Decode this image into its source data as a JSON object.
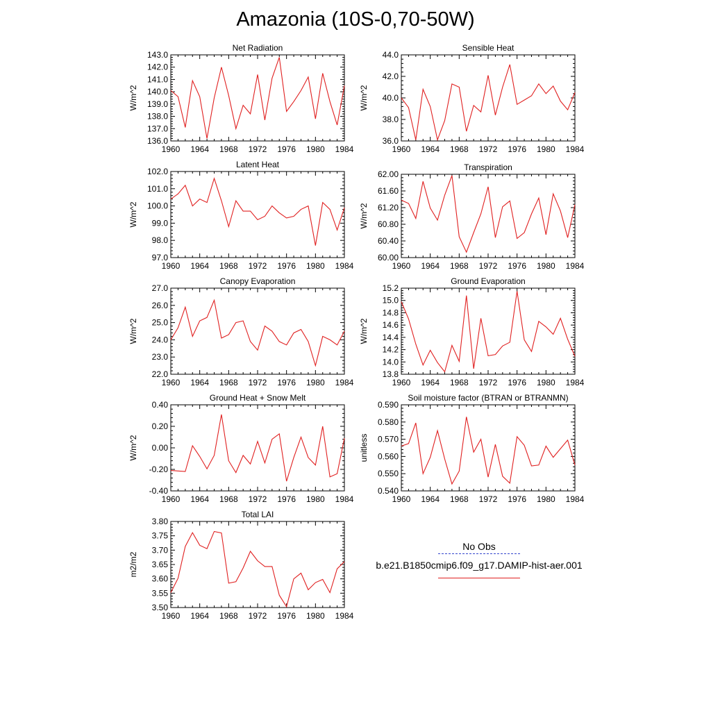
{
  "title": "Amazonia (10S-0,70-50W)",
  "legend": {
    "obs_label": "No Obs",
    "obs_color": "#3344cc",
    "model_label": "b.e21.B1850cmip6.f09_g17.DAMIP-hist-aer.001",
    "model_color": "#e02020"
  },
  "chart_data": [
    {
      "type": "line",
      "title": "Net Radiation",
      "ylabel": "W/m^2",
      "xlim": [
        1960,
        1984
      ],
      "ylim": [
        136.0,
        143.0
      ],
      "yticks": [
        "136.0",
        "137.0",
        "138.0",
        "139.0",
        "140.0",
        "141.0",
        "142.0",
        "143.0"
      ],
      "xticks": [
        "1960",
        "1964",
        "1968",
        "1972",
        "1976",
        "1980",
        "1984"
      ],
      "x": [
        1960,
        1961,
        1962,
        1963,
        1964,
        1965,
        1966,
        1967,
        1968,
        1969,
        1970,
        1971,
        1972,
        1973,
        1974,
        1975,
        1976,
        1977,
        1978,
        1979,
        1980,
        1981,
        1982,
        1983,
        1984
      ],
      "series": [
        {
          "values": [
            140.1,
            139.6,
            137.1,
            140.9,
            139.6,
            136.2,
            139.5,
            142.0,
            139.7,
            137.0,
            138.9,
            138.2,
            141.4,
            137.7,
            141.1,
            142.8,
            138.4,
            139.2,
            140.1,
            141.2,
            137.8,
            141.5,
            139.2,
            137.3,
            140.5
          ]
        }
      ]
    },
    {
      "type": "line",
      "title": "Sensible Heat",
      "ylabel": "W/m^2",
      "xlim": [
        1960,
        1984
      ],
      "ylim": [
        36.0,
        44.0
      ],
      "yticks": [
        "36.0",
        "38.0",
        "40.0",
        "42.0",
        "44.0"
      ],
      "xticks": [
        "1960",
        "1964",
        "1968",
        "1972",
        "1976",
        "1980",
        "1984"
      ],
      "x": [
        1960,
        1961,
        1962,
        1963,
        1964,
        1965,
        1966,
        1967,
        1968,
        1969,
        1970,
        1971,
        1972,
        1973,
        1974,
        1975,
        1976,
        1977,
        1978,
        1979,
        1980,
        1981,
        1982,
        1983,
        1984
      ],
      "series": [
        {
          "values": [
            40.0,
            39.1,
            36.1,
            40.8,
            39.2,
            36.1,
            37.9,
            41.3,
            41.0,
            36.9,
            39.3,
            38.7,
            42.1,
            38.4,
            41.0,
            43.1,
            39.4,
            39.8,
            40.2,
            41.3,
            40.4,
            41.1,
            39.7,
            38.9,
            40.5
          ]
        }
      ]
    },
    {
      "type": "line",
      "title": "Latent Heat",
      "ylabel": "W/m^2",
      "xlim": [
        1960,
        1984
      ],
      "ylim": [
        97.0,
        102.0
      ],
      "yticks": [
        "97.0",
        "98.0",
        "99.0",
        "100.0",
        "101.0",
        "102.0"
      ],
      "xticks": [
        "1960",
        "1964",
        "1968",
        "1972",
        "1976",
        "1980",
        "1984"
      ],
      "x": [
        1960,
        1961,
        1962,
        1963,
        1964,
        1965,
        1966,
        1967,
        1968,
        1969,
        1970,
        1971,
        1972,
        1973,
        1974,
        1975,
        1976,
        1977,
        1978,
        1979,
        1980,
        1981,
        1982,
        1983,
        1984
      ],
      "series": [
        {
          "values": [
            100.4,
            100.7,
            101.2,
            100.0,
            100.4,
            100.2,
            101.6,
            100.3,
            98.8,
            100.3,
            99.7,
            99.7,
            99.2,
            99.4,
            100.0,
            99.6,
            99.3,
            99.4,
            99.8,
            100.0,
            97.7,
            100.2,
            99.8,
            98.6,
            99.9
          ]
        }
      ]
    },
    {
      "type": "line",
      "title": "Transpiration",
      "ylabel": "W/m^2",
      "xlim": [
        1960,
        1984
      ],
      "ylim": [
        60.0,
        62.0
      ],
      "yticks": [
        "60.00",
        "60.40",
        "60.80",
        "61.20",
        "61.60",
        "62.00"
      ],
      "xticks": [
        "1960",
        "1964",
        "1968",
        "1972",
        "1976",
        "1980",
        "1984"
      ],
      "x": [
        1960,
        1961,
        1962,
        1963,
        1964,
        1965,
        1966,
        1967,
        1968,
        1969,
        1970,
        1971,
        1972,
        1973,
        1974,
        1975,
        1976,
        1977,
        1978,
        1979,
        1980,
        1981,
        1982,
        1983,
        1984
      ],
      "series": [
        {
          "values": [
            61.38,
            61.3,
            60.94,
            61.83,
            61.19,
            60.9,
            61.5,
            61.97,
            60.5,
            60.13,
            60.6,
            61.05,
            61.7,
            60.48,
            61.22,
            61.36,
            60.46,
            60.6,
            61.05,
            61.43,
            60.55,
            61.53,
            61.12,
            60.48,
            61.27
          ]
        }
      ]
    },
    {
      "type": "line",
      "title": "Canopy Evaporation",
      "ylabel": "W/m^2",
      "xlim": [
        1960,
        1984
      ],
      "ylim": [
        22.0,
        27.0
      ],
      "yticks": [
        "22.0",
        "23.0",
        "24.0",
        "25.0",
        "26.0",
        "27.0"
      ],
      "xticks": [
        "1960",
        "1964",
        "1968",
        "1972",
        "1976",
        "1980",
        "1984"
      ],
      "x": [
        1960,
        1961,
        1962,
        1963,
        1964,
        1965,
        1966,
        1967,
        1968,
        1969,
        1970,
        1971,
        1972,
        1973,
        1974,
        1975,
        1976,
        1977,
        1978,
        1979,
        1980,
        1981,
        1982,
        1983,
        1984
      ],
      "series": [
        {
          "values": [
            24.0,
            24.7,
            25.9,
            24.2,
            25.1,
            25.3,
            26.3,
            24.1,
            24.3,
            25.0,
            25.1,
            23.9,
            23.4,
            24.8,
            24.5,
            23.9,
            23.7,
            24.4,
            24.6,
            23.9,
            22.5,
            24.2,
            24.0,
            23.7,
            24.5
          ]
        }
      ]
    },
    {
      "type": "line",
      "title": "Ground Evaporation",
      "ylabel": "W/m^2",
      "xlim": [
        1960,
        1984
      ],
      "ylim": [
        13.8,
        15.2
      ],
      "yticks": [
        "13.8",
        "14.0",
        "14.2",
        "14.4",
        "14.6",
        "14.8",
        "15.0",
        "15.2"
      ],
      "xticks": [
        "1960",
        "1964",
        "1968",
        "1972",
        "1976",
        "1980",
        "1984"
      ],
      "x": [
        1960,
        1961,
        1962,
        1963,
        1964,
        1965,
        1966,
        1967,
        1968,
        1969,
        1970,
        1971,
        1972,
        1973,
        1974,
        1975,
        1976,
        1977,
        1978,
        1979,
        1980,
        1981,
        1982,
        1983,
        1984
      ],
      "series": [
        {
          "values": [
            14.98,
            14.7,
            14.29,
            13.95,
            14.19,
            13.99,
            13.84,
            14.27,
            14.01,
            15.08,
            13.89,
            14.71,
            14.1,
            14.12,
            14.26,
            14.32,
            15.15,
            14.36,
            14.17,
            14.66,
            14.57,
            14.45,
            14.71,
            14.37,
            14.09
          ]
        }
      ]
    },
    {
      "type": "line",
      "title": "Ground Heat + Snow Melt",
      "ylabel": "W/m^2",
      "xlim": [
        1960,
        1984
      ],
      "ylim": [
        -0.4,
        0.4
      ],
      "yticks": [
        "-0.40",
        "-0.20",
        "0.00",
        "0.20",
        "0.40"
      ],
      "xticks": [
        "1960",
        "1964",
        "1968",
        "1972",
        "1976",
        "1980",
        "1984"
      ],
      "x": [
        1960,
        1961,
        1962,
        1963,
        1964,
        1965,
        1966,
        1967,
        1968,
        1969,
        1970,
        1971,
        1972,
        1973,
        1974,
        1975,
        1976,
        1977,
        1978,
        1979,
        1980,
        1981,
        1982,
        1983,
        1984
      ],
      "series": [
        {
          "values": [
            -0.21,
            -0.215,
            -0.22,
            0.02,
            -0.08,
            -0.195,
            -0.07,
            0.31,
            -0.12,
            -0.23,
            -0.07,
            -0.15,
            0.06,
            -0.14,
            0.08,
            0.13,
            -0.31,
            -0.09,
            0.1,
            -0.09,
            -0.16,
            0.2,
            -0.27,
            -0.24,
            0.09
          ]
        }
      ]
    },
    {
      "type": "line",
      "title": "Soil moisture factor (BTRAN or BTRANMN)",
      "ylabel": "unitless",
      "xlim": [
        1960,
        1984
      ],
      "ylim": [
        0.54,
        0.59
      ],
      "yticks": [
        "0.540",
        "0.550",
        "0.560",
        "0.570",
        "0.580",
        "0.590"
      ],
      "xticks": [
        "1960",
        "1964",
        "1968",
        "1972",
        "1976",
        "1980",
        "1984"
      ],
      "x": [
        1960,
        1961,
        1962,
        1963,
        1964,
        1965,
        1966,
        1967,
        1968,
        1969,
        1970,
        1971,
        1972,
        1973,
        1974,
        1975,
        1976,
        1977,
        1978,
        1979,
        1980,
        1981,
        1982,
        1983,
        1984
      ],
      "series": [
        {
          "values": [
            0.566,
            0.5675,
            0.5795,
            0.55,
            0.5595,
            0.575,
            0.5585,
            0.544,
            0.5515,
            0.583,
            0.5625,
            0.57,
            0.548,
            0.567,
            0.5485,
            0.5445,
            0.5715,
            0.5665,
            0.5545,
            0.555,
            0.566,
            0.5595,
            0.5645,
            0.5695,
            0.555
          ]
        }
      ]
    },
    {
      "type": "line",
      "title": "Total LAI",
      "ylabel": "m2/m2",
      "xlim": [
        1960,
        1984
      ],
      "ylim": [
        3.5,
        3.8
      ],
      "yticks": [
        "3.50",
        "3.55",
        "3.60",
        "3.65",
        "3.70",
        "3.75",
        "3.80"
      ],
      "xticks": [
        "1960",
        "1964",
        "1968",
        "1972",
        "1976",
        "1980",
        "1984"
      ],
      "x": [
        1960,
        1961,
        1962,
        1963,
        1964,
        1965,
        1966,
        1967,
        1968,
        1969,
        1970,
        1971,
        1972,
        1973,
        1974,
        1975,
        1976,
        1977,
        1978,
        1979,
        1980,
        1981,
        1982,
        1983,
        1984
      ],
      "series": [
        {
          "values": [
            3.552,
            3.602,
            3.713,
            3.761,
            3.717,
            3.705,
            3.765,
            3.76,
            3.585,
            3.59,
            3.638,
            3.696,
            3.663,
            3.643,
            3.643,
            3.543,
            3.503,
            3.6,
            3.62,
            3.562,
            3.587,
            3.598,
            3.552,
            3.635,
            3.66
          ]
        }
      ]
    }
  ]
}
